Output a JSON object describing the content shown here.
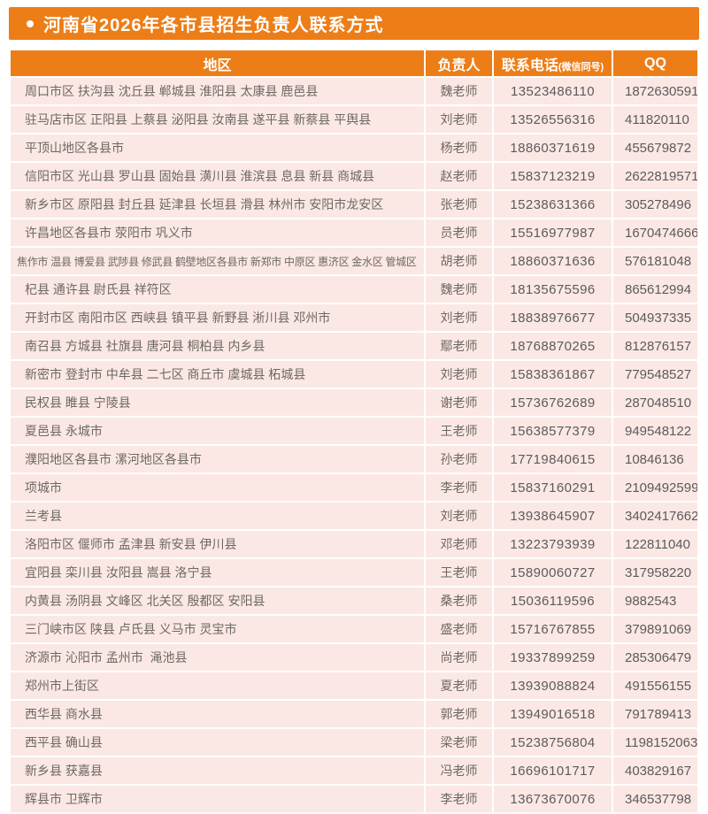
{
  "title": {
    "bullet_icon": "•",
    "text": "河南省2026年各市县招生负责人联系方式"
  },
  "colors": {
    "accent_orange": "#ED7D17",
    "row_pink": "#FBE8E4",
    "title_text": "#FFFFFF",
    "body_text": "#6E6862",
    "number_text": "#5B5B5B"
  },
  "table": {
    "headers": {
      "region": "地区",
      "person": "负责人",
      "phone": "联系电话",
      "phone_note": "(微信同号)",
      "qq": "QQ"
    },
    "rows": [
      {
        "region": "周口市区 扶沟县 沈丘县 郸城县 淮阳县 太康县 鹿邑县",
        "person": "魏老师",
        "phone": "13523486110",
        "qq": "1872630591"
      },
      {
        "region": "驻马店市区 正阳县 上蔡县 泌阳县 汝南县 遂平县 新蔡县 平舆县",
        "person": "刘老师",
        "phone": "13526556316",
        "qq": "411820110"
      },
      {
        "region": "平顶山地区各县市",
        "person": "杨老师",
        "phone": "18860371619",
        "qq": "455679872"
      },
      {
        "region": "信阳市区 光山县 罗山县 固始县 潢川县 淮滨县 息县 新县 商城县",
        "person": "赵老师",
        "phone": "15837123219",
        "qq": "2622819571"
      },
      {
        "region": "新乡市区 原阳县 封丘县 延津县 长垣县 滑县 林州市 安阳市龙安区",
        "person": "张老师",
        "phone": "15238631366",
        "qq": "305278496"
      },
      {
        "region": "许昌地区各县市 荥阳市 巩义市",
        "person": "员老师",
        "phone": "15516977987",
        "qq": "1670474666"
      },
      {
        "region": "焦作市 温县 博爱县 武陟县 修武县 鹤壁地区各县市 新郑市 中原区 惠济区 金水区 管城区",
        "person": "胡老师",
        "phone": "18860371636",
        "qq": "576181048"
      },
      {
        "region": "杞县 通许县 尉氏县 祥符区",
        "person": "魏老师",
        "phone": "18135675596",
        "qq": "865612994"
      },
      {
        "region": "开封市区 南阳市区 西峡县 镇平县 新野县 淅川县 邓州市",
        "person": "刘老师",
        "phone": "18838976677",
        "qq": "504937335"
      },
      {
        "region": "南召县 方城县 社旗县 唐河县 桐柏县 内乡县",
        "person": "鄢老师",
        "phone": "18768870265",
        "qq": "812876157"
      },
      {
        "region": "新密市 登封市 中牟县 二七区 商丘市 虞城县 柘城县",
        "person": "刘老师",
        "phone": "15838361867",
        "qq": "779548527"
      },
      {
        "region": "民权县 睢县 宁陵县",
        "person": "谢老师",
        "phone": "15736762689",
        "qq": "287048510"
      },
      {
        "region": "夏邑县 永城市",
        "person": "王老师",
        "phone": "15638577379",
        "qq": "949548122"
      },
      {
        "region": "濮阳地区各县市 漯河地区各县市",
        "person": "孙老师",
        "phone": "17719840615",
        "qq": "10846136"
      },
      {
        "region": "项城市",
        "person": "李老师",
        "phone": "15837160291",
        "qq": "2109492599"
      },
      {
        "region": "兰考县",
        "person": "刘老师",
        "phone": "13938645907",
        "qq": "3402417662"
      },
      {
        "region": "洛阳市区 偃师市 孟津县 新安县 伊川县",
        "person": "邓老师",
        "phone": "13223793939",
        "qq": "122811040"
      },
      {
        "region": "宜阳县 栾川县 汝阳县 嵩县 洛宁县",
        "person": "王老师",
        "phone": "15890060727",
        "qq": "317958220"
      },
      {
        "region": "内黄县 汤阴县 文峰区 北关区 殷都区 安阳县",
        "person": "桑老师",
        "phone": "15036119596",
        "qq": "9882543"
      },
      {
        "region": "三门峡市区 陕县 卢氏县 义马市 灵宝市",
        "person": "盛老师",
        "phone": "15716767855",
        "qq": "379891069"
      },
      {
        "region": "济源市 沁阳市 孟州市  渑池县",
        "person": "尚老师",
        "phone": "19337899259",
        "qq": "285306479"
      },
      {
        "region": "郑州市上街区",
        "person": "夏老师",
        "phone": "13939088824",
        "qq": "491556155"
      },
      {
        "region": "西华县 商水县",
        "person": "郭老师",
        "phone": "13949016518",
        "qq": "791789413"
      },
      {
        "region": "西平县 确山县",
        "person": "梁老师",
        "phone": "15238756804",
        "qq": "1198152063"
      },
      {
        "region": "新乡县 获嘉县",
        "person": "冯老师",
        "phone": "16696101717",
        "qq": "403829167"
      },
      {
        "region": "辉县市 卫辉市",
        "person": "李老师",
        "phone": "13673670076",
        "qq": "346537798"
      }
    ]
  }
}
